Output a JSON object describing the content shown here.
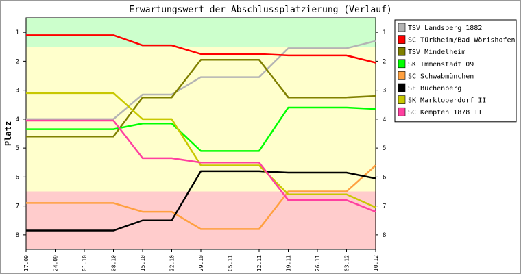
{
  "chart_data": {
    "type": "line",
    "title": "Erwartungswert der Abschlussplatzierung (Verlauf)",
    "ylabel": "Platz",
    "xlabel": "",
    "ylim": [
      0.5,
      8.5
    ],
    "y_inverted": true,
    "y_ticks": [
      "1",
      "2",
      "3",
      "4",
      "5",
      "6",
      "7",
      "8"
    ],
    "categories": [
      "17.09",
      "24.09",
      "01.10",
      "08.10",
      "15.10",
      "22.10",
      "29.10",
      "05.11",
      "12.11",
      "19.11",
      "26.11",
      "03.12",
      "10.12"
    ],
    "bands": [
      {
        "from": 0.5,
        "to": 1.5,
        "color": "#ccffcc"
      },
      {
        "from": 1.5,
        "to": 6.5,
        "color": "#ffffcc"
      },
      {
        "from": 6.5,
        "to": 8.5,
        "color": "#ffcccc"
      }
    ],
    "grid": false,
    "legend_position": "right",
    "series": [
      {
        "name": "TSV Landsberg 1882",
        "color": "#b4b4b4",
        "values": [
          4.0,
          4.0,
          4.0,
          4.0,
          3.15,
          3.15,
          2.55,
          2.55,
          2.55,
          1.55,
          1.55,
          1.55,
          1.3
        ]
      },
      {
        "name": "SC Türkheim/Bad Wörishofen",
        "color": "#ff0000",
        "values": [
          1.1,
          1.1,
          1.1,
          1.1,
          1.45,
          1.45,
          1.75,
          1.75,
          1.75,
          1.8,
          1.8,
          1.8,
          2.05
        ]
      },
      {
        "name": "TSV Mindelheim",
        "color": "#808000",
        "values": [
          4.6,
          4.6,
          4.6,
          4.6,
          3.25,
          3.25,
          1.95,
          1.95,
          1.95,
          3.25,
          3.25,
          3.25,
          3.2
        ]
      },
      {
        "name": "SK Immenstadt 09",
        "color": "#00ff00",
        "values": [
          4.35,
          4.35,
          4.35,
          4.35,
          4.15,
          4.15,
          5.1,
          5.1,
          5.1,
          3.6,
          3.6,
          3.6,
          3.65
        ]
      },
      {
        "name": "SC Schwabmünchen",
        "color": "#ffa040",
        "values": [
          6.9,
          6.9,
          6.9,
          6.9,
          7.2,
          7.2,
          7.8,
          7.8,
          7.8,
          6.5,
          6.5,
          6.5,
          5.6
        ]
      },
      {
        "name": "SF Buchenberg",
        "color": "#000000",
        "values": [
          7.85,
          7.85,
          7.85,
          7.85,
          7.5,
          7.5,
          5.8,
          5.8,
          5.8,
          5.85,
          5.85,
          5.85,
          6.05
        ]
      },
      {
        "name": "SK Marktoberdorf II",
        "color": "#c8c800",
        "values": [
          3.1,
          3.1,
          3.1,
          3.1,
          4.0,
          4.0,
          5.6,
          5.6,
          5.6,
          6.6,
          6.6,
          6.6,
          7.05
        ]
      },
      {
        "name": "SC Kempten 1878 II",
        "color": "#ff40a0",
        "values": [
          4.05,
          4.05,
          4.05,
          4.05,
          5.35,
          5.35,
          5.5,
          5.5,
          5.5,
          6.8,
          6.8,
          6.8,
          7.2
        ]
      }
    ]
  }
}
